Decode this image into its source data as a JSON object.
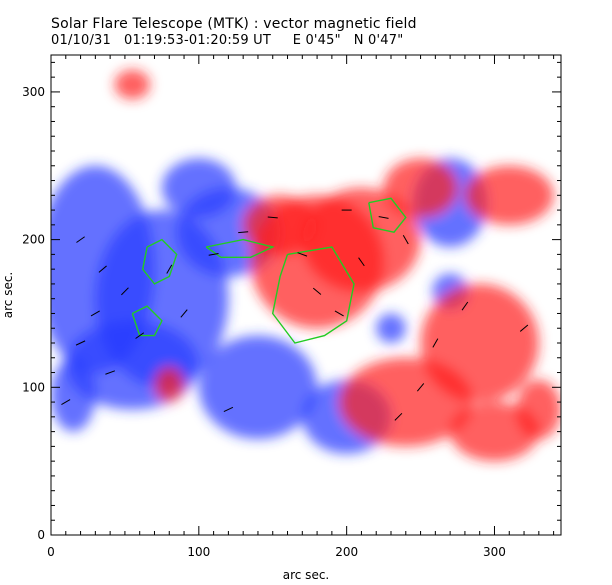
{
  "header": {
    "title": "Solar Flare Telescope (MTK) : vector magnetic field",
    "subtitle": "01/10/31   01:19:53-01:20:59 UT     E 0'45\"   N 0'47\""
  },
  "colors": {
    "positive_polarity": "#ff2020",
    "negative_polarity": "#2a3cff",
    "contour": "#22cc22",
    "vector": "#000000",
    "background": "#ffffff"
  },
  "chart_data": {
    "type": "heatmap",
    "title": "Solar Flare Telescope (MTK) : vector magnetic field",
    "xlabel": "arc sec.",
    "ylabel": "arc sec.",
    "xlim": [
      0,
      345
    ],
    "ylim": [
      0,
      325
    ],
    "x_ticks": [
      0,
      100,
      200,
      300
    ],
    "y_ticks": [
      0,
      100,
      200,
      300
    ],
    "grid": false,
    "legend": "none",
    "series": [
      {
        "kind": "negative-polarity-regions",
        "blobs": [
          {
            "x": 30,
            "y": 180,
            "rx": 40,
            "ry": 70
          },
          {
            "x": 75,
            "y": 160,
            "rx": 45,
            "ry": 60
          },
          {
            "x": 55,
            "y": 115,
            "rx": 45,
            "ry": 30
          },
          {
            "x": 120,
            "y": 205,
            "rx": 35,
            "ry": 30
          },
          {
            "x": 140,
            "y": 100,
            "rx": 40,
            "ry": 35
          },
          {
            "x": 200,
            "y": 80,
            "rx": 30,
            "ry": 25
          },
          {
            "x": 270,
            "y": 225,
            "rx": 25,
            "ry": 30
          },
          {
            "x": 100,
            "y": 235,
            "rx": 25,
            "ry": 20
          },
          {
            "x": 15,
            "y": 95,
            "rx": 15,
            "ry": 25
          },
          {
            "x": 270,
            "y": 165,
            "rx": 12,
            "ry": 12
          },
          {
            "x": 230,
            "y": 140,
            "rx": 10,
            "ry": 10
          }
        ]
      },
      {
        "kind": "positive-polarity-regions",
        "blobs": [
          {
            "x": 180,
            "y": 185,
            "rx": 45,
            "ry": 45
          },
          {
            "x": 210,
            "y": 200,
            "rx": 40,
            "ry": 35
          },
          {
            "x": 155,
            "y": 210,
            "rx": 25,
            "ry": 20
          },
          {
            "x": 240,
            "y": 90,
            "rx": 45,
            "ry": 30
          },
          {
            "x": 290,
            "y": 130,
            "rx": 40,
            "ry": 40
          },
          {
            "x": 300,
            "y": 70,
            "rx": 30,
            "ry": 20
          },
          {
            "x": 250,
            "y": 235,
            "rx": 25,
            "ry": 20
          },
          {
            "x": 310,
            "y": 230,
            "rx": 30,
            "ry": 20
          },
          {
            "x": 80,
            "y": 102,
            "rx": 10,
            "ry": 12
          },
          {
            "x": 55,
            "y": 305,
            "rx": 12,
            "ry": 10
          },
          {
            "x": 330,
            "y": 85,
            "rx": 15,
            "ry": 20
          }
        ]
      },
      {
        "kind": "transverse-field-vectors",
        "vectors": [
          {
            "x": 20,
            "y": 200,
            "angle": 35
          },
          {
            "x": 35,
            "y": 180,
            "angle": 40
          },
          {
            "x": 50,
            "y": 165,
            "angle": 45
          },
          {
            "x": 30,
            "y": 150,
            "angle": 30
          },
          {
            "x": 20,
            "y": 130,
            "angle": 25
          },
          {
            "x": 40,
            "y": 110,
            "angle": 20
          },
          {
            "x": 60,
            "y": 135,
            "angle": 35
          },
          {
            "x": 80,
            "y": 180,
            "angle": 60
          },
          {
            "x": 90,
            "y": 150,
            "angle": 50
          },
          {
            "x": 110,
            "y": 190,
            "angle": 10
          },
          {
            "x": 130,
            "y": 205,
            "angle": 5
          },
          {
            "x": 150,
            "y": 215,
            "angle": -5
          },
          {
            "x": 170,
            "y": 190,
            "angle": -20
          },
          {
            "x": 180,
            "y": 165,
            "angle": -40
          },
          {
            "x": 195,
            "y": 150,
            "angle": -30
          },
          {
            "x": 210,
            "y": 185,
            "angle": -55
          },
          {
            "x": 225,
            "y": 215,
            "angle": -10
          },
          {
            "x": 240,
            "y": 200,
            "angle": -60
          },
          {
            "x": 200,
            "y": 220,
            "angle": 0
          },
          {
            "x": 260,
            "y": 130,
            "angle": 60
          },
          {
            "x": 280,
            "y": 155,
            "angle": 55
          },
          {
            "x": 250,
            "y": 100,
            "angle": 50
          },
          {
            "x": 235,
            "y": 80,
            "angle": 45
          },
          {
            "x": 320,
            "y": 140,
            "angle": 40
          },
          {
            "x": 10,
            "y": 90,
            "angle": 30
          },
          {
            "x": 120,
            "y": 85,
            "angle": 25
          }
        ]
      },
      {
        "kind": "contours",
        "paths": [
          {
            "x": [
              65,
              75,
              85,
              80,
              70,
              62,
              65
            ],
            "y": [
              195,
              200,
              190,
              175,
              170,
              180,
              195
            ]
          },
          {
            "x": [
              55,
              65,
              75,
              70,
              60,
              55
            ],
            "y": [
              150,
              155,
              145,
              135,
              135,
              150
            ]
          },
          {
            "x": [
              160,
              190,
              205,
              200,
              185,
              165,
              150,
              155,
              160
            ],
            "y": [
              190,
              195,
              170,
              145,
              135,
              130,
              150,
              175,
              190
            ]
          },
          {
            "x": [
              215,
              230,
              240,
              232,
              218,
              215
            ],
            "y": [
              225,
              228,
              215,
              205,
              208,
              225
            ]
          },
          {
            "x": [
              105,
              130,
              150,
              135,
              115,
              105
            ],
            "y": [
              195,
              200,
              195,
              188,
              188,
              195
            ]
          }
        ]
      }
    ]
  }
}
